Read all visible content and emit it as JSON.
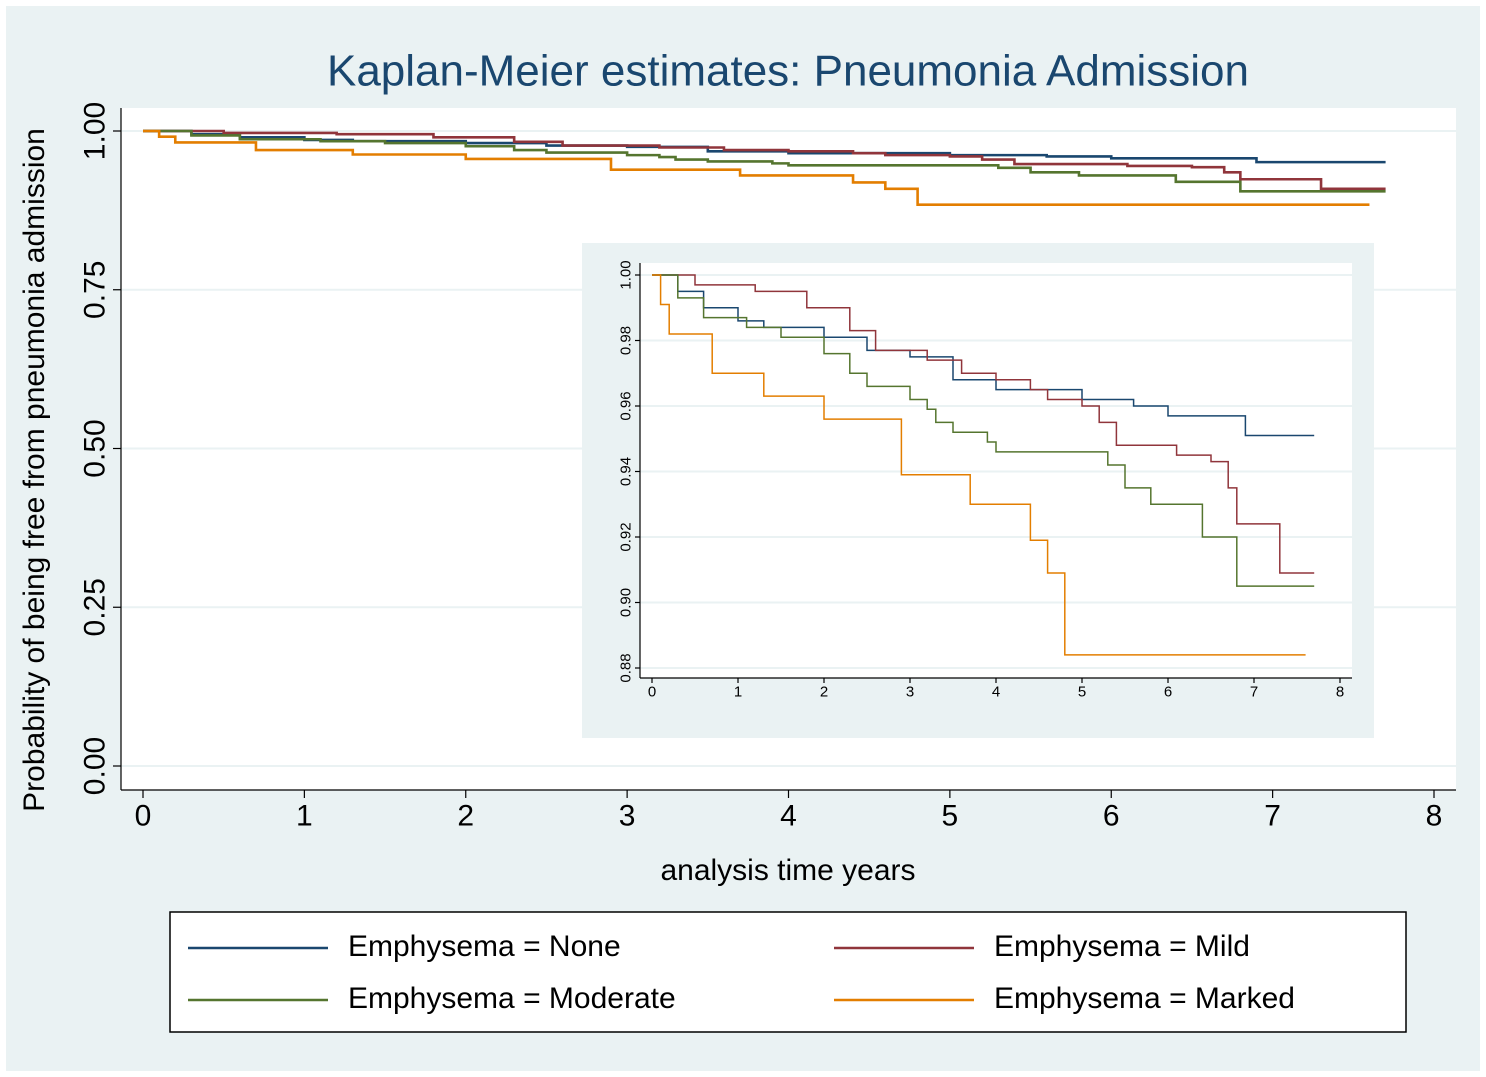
{
  "chart_data": [
    {
      "type": "step",
      "title": "Kaplan-Meier estimates: Pneumonia Admission",
      "xlabel": "analysis time years",
      "ylabel": "Probability of being free from pneumonia admission",
      "xlim": [
        0,
        8
      ],
      "xticks": [
        0,
        1,
        2,
        3,
        4,
        5,
        6,
        7,
        8
      ],
      "ylim": [
        0,
        1
      ],
      "yticks": [
        {
          "value": 0,
          "label": "0.00"
        },
        {
          "value": 0.25,
          "label": "0.25"
        },
        {
          "value": 0.5,
          "label": "0.50"
        },
        {
          "value": 0.75,
          "label": "0.75"
        },
        {
          "value": 1,
          "label": "1.00"
        }
      ],
      "grid": true,
      "legend": "bottom",
      "series": [
        {
          "name": "Emphysema = None",
          "color": "#1a476f",
          "x": [
            0,
            0.3,
            0.6,
            1.0,
            1.3,
            2.0,
            2.5,
            3.0,
            3.5,
            4.0,
            5.0,
            5.6,
            6.0,
            6.9,
            7.7
          ],
          "values": [
            1,
            0.995,
            0.99,
            0.986,
            0.984,
            0.981,
            0.977,
            0.975,
            0.968,
            0.965,
            0.962,
            0.96,
            0.957,
            0.951,
            0.951
          ]
        },
        {
          "name": "Emphysema = Mild",
          "color": "#90353b",
          "x": [
            0,
            0.5,
            1.2,
            1.8,
            2.3,
            2.6,
            3.2,
            3.6,
            4.0,
            4.4,
            4.6,
            5.0,
            5.2,
            5.4,
            6.1,
            6.5,
            6.7,
            6.8,
            7.3,
            7.7
          ],
          "values": [
            1,
            0.997,
            0.995,
            0.99,
            0.983,
            0.977,
            0.974,
            0.97,
            0.968,
            0.965,
            0.962,
            0.96,
            0.955,
            0.948,
            0.945,
            0.943,
            0.935,
            0.924,
            0.909,
            0.909
          ]
        },
        {
          "name": "Emphysema = Moderate",
          "color": "#55752f",
          "x": [
            0,
            0.3,
            0.6,
            1.1,
            1.5,
            2.0,
            2.3,
            2.5,
            3.0,
            3.2,
            3.3,
            3.5,
            3.9,
            4.0,
            5.3,
            5.5,
            5.8,
            6.4,
            6.8,
            7.7
          ],
          "values": [
            1,
            0.993,
            0.987,
            0.984,
            0.981,
            0.976,
            0.97,
            0.966,
            0.962,
            0.959,
            0.955,
            0.952,
            0.949,
            0.946,
            0.942,
            0.935,
            0.93,
            0.92,
            0.905,
            0.905
          ]
        },
        {
          "name": "Emphysema = Marked",
          "color": "#e37e00",
          "x": [
            0,
            0.1,
            0.2,
            0.7,
            1.3,
            2.0,
            2.9,
            3.7,
            4.4,
            4.6,
            4.8,
            7.6
          ],
          "values": [
            1,
            0.991,
            0.982,
            0.97,
            0.963,
            0.956,
            0.939,
            0.93,
            0.919,
            0.909,
            0.884,
            0.884
          ]
        }
      ]
    },
    {
      "type": "step",
      "xlim": [
        0,
        8
      ],
      "xticks": [
        0,
        1,
        2,
        3,
        4,
        5,
        6,
        7,
        8
      ],
      "ylim": [
        0.88,
        1
      ],
      "yticks": [
        {
          "value": 0.88,
          "label": "0.88"
        },
        {
          "value": 0.9,
          "label": "0.90"
        },
        {
          "value": 0.92,
          "label": "0.92"
        },
        {
          "value": 0.94,
          "label": "0.94"
        },
        {
          "value": 0.96,
          "label": "0.96"
        },
        {
          "value": 0.98,
          "label": "0.98"
        },
        {
          "value": 1,
          "label": "1.00"
        }
      ],
      "grid": true,
      "series": [
        {
          "color": "#1a476f",
          "x": [
            0,
            0.3,
            0.6,
            1.0,
            1.3,
            2.0,
            2.5,
            3.0,
            3.5,
            4.0,
            5.0,
            5.6,
            6.0,
            6.9,
            7.7
          ],
          "values": [
            1,
            0.995,
            0.99,
            0.986,
            0.984,
            0.981,
            0.977,
            0.975,
            0.968,
            0.965,
            0.962,
            0.96,
            0.957,
            0.951,
            0.951
          ]
        },
        {
          "color": "#90353b",
          "x": [
            0,
            0.5,
            1.2,
            1.8,
            2.3,
            2.6,
            3.2,
            3.6,
            4.0,
            4.4,
            4.6,
            5.0,
            5.2,
            5.4,
            6.1,
            6.5,
            6.7,
            6.8,
            7.3,
            7.7
          ],
          "values": [
            1,
            0.997,
            0.995,
            0.99,
            0.983,
            0.977,
            0.974,
            0.97,
            0.968,
            0.965,
            0.962,
            0.96,
            0.955,
            0.948,
            0.945,
            0.943,
            0.935,
            0.924,
            0.909,
            0.909
          ]
        },
        {
          "color": "#55752f",
          "x": [
            0,
            0.3,
            0.6,
            1.1,
            1.5,
            2.0,
            2.3,
            2.5,
            3.0,
            3.2,
            3.3,
            3.5,
            3.9,
            4.0,
            5.3,
            5.5,
            5.8,
            6.4,
            6.8,
            7.7
          ],
          "values": [
            1,
            0.993,
            0.987,
            0.984,
            0.981,
            0.976,
            0.97,
            0.966,
            0.962,
            0.959,
            0.955,
            0.952,
            0.949,
            0.946,
            0.942,
            0.935,
            0.93,
            0.92,
            0.905,
            0.905
          ]
        },
        {
          "color": "#e37e00",
          "x": [
            0,
            0.1,
            0.2,
            0.7,
            1.3,
            2.0,
            2.9,
            3.7,
            4.4,
            4.6,
            4.8,
            7.6
          ],
          "values": [
            1,
            0.991,
            0.982,
            0.97,
            0.963,
            0.956,
            0.939,
            0.93,
            0.919,
            0.909,
            0.884,
            0.884
          ]
        }
      ]
    }
  ]
}
